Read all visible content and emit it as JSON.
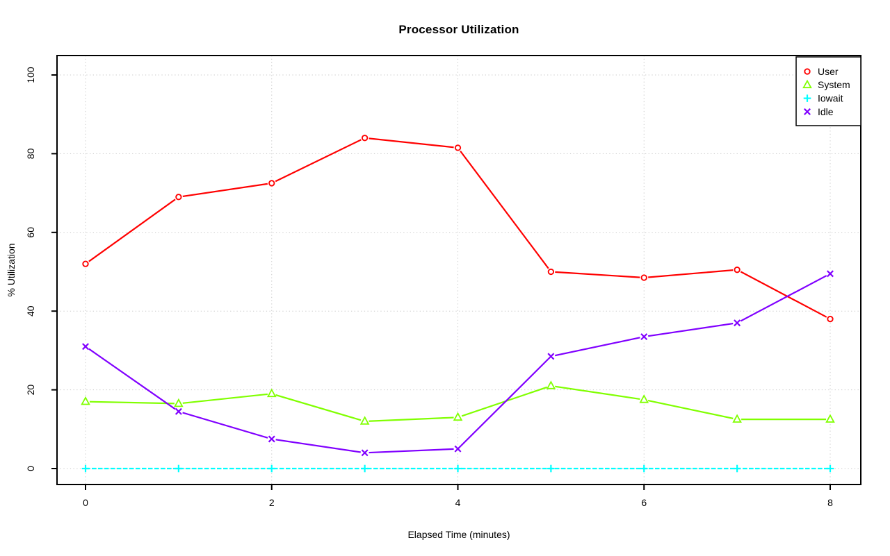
{
  "page": {
    "background_color": "#ffffff",
    "text_color": "#000000",
    "grid_color": "#c8c8c8"
  },
  "chart_data": {
    "type": "line",
    "title": "Processor Utilization",
    "xlabel": "Elapsed Time (minutes)",
    "ylabel": "% Utilization",
    "x": [
      0,
      1,
      2,
      3,
      4,
      5,
      6,
      7,
      8
    ],
    "xticks": [
      0,
      2,
      4,
      6,
      8
    ],
    "yticks": [
      0,
      20,
      40,
      60,
      80,
      100
    ],
    "xlim": [
      0,
      8
    ],
    "ylim": [
      0,
      100
    ],
    "grid": "dotted",
    "legend_position": "top-right",
    "legend_labels": [
      "User",
      "System",
      "Iowait",
      "Idle"
    ],
    "series": [
      {
        "name": "User",
        "color": "#ff0000",
        "marker": "circle",
        "line_style": "solid",
        "values": [
          52,
          69,
          72.5,
          84,
          81.5,
          50,
          48.5,
          50.5,
          38
        ]
      },
      {
        "name": "System",
        "color": "#80ff00",
        "marker": "triangle",
        "line_style": "solid",
        "values": [
          17,
          16.5,
          19,
          12,
          13,
          21,
          17.5,
          12.5,
          12.5
        ]
      },
      {
        "name": "Iowait",
        "color": "#00ffff",
        "marker": "plus",
        "line_style": "dashed",
        "values": [
          0,
          0,
          0,
          0,
          0,
          0,
          0,
          0,
          0
        ]
      },
      {
        "name": "Idle",
        "color": "#8000ff",
        "marker": "x",
        "line_style": "solid",
        "values": [
          31,
          14.5,
          7.5,
          4,
          5,
          28.5,
          33.5,
          37,
          49.5
        ]
      }
    ]
  }
}
